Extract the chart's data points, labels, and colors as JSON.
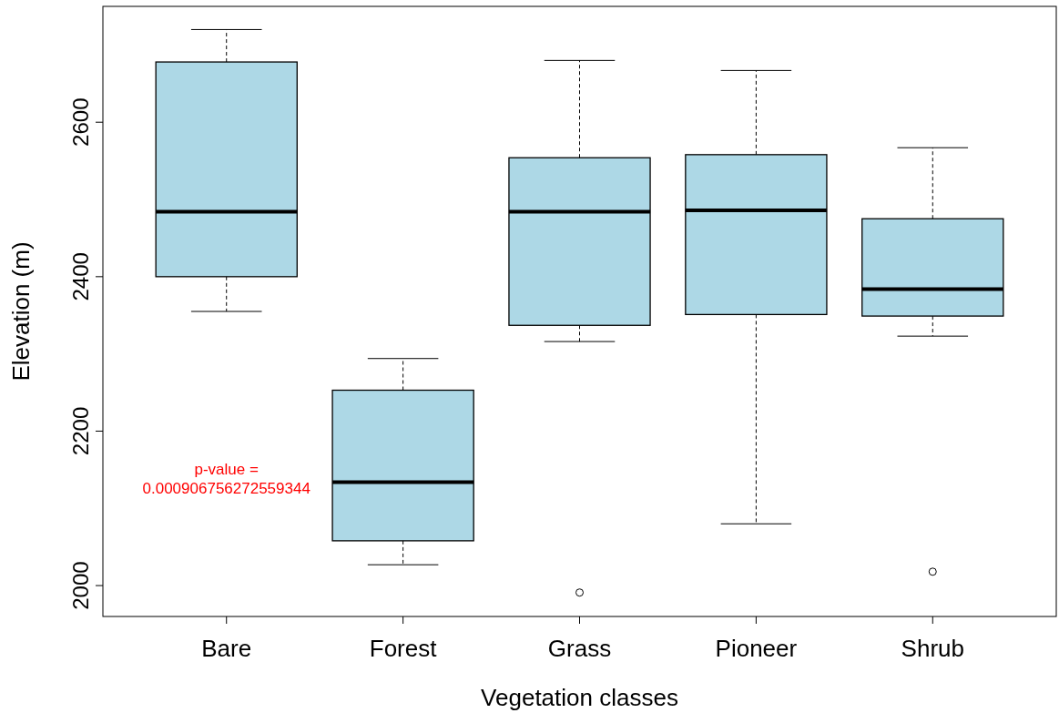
{
  "chart_data": {
    "type": "box",
    "xlabel": "Vegetation classes",
    "ylabel": "Elevation (m)",
    "categories": [
      "Bare",
      "Forest",
      "Grass",
      "Pioneer",
      "Shrub"
    ],
    "ylim": [
      1960,
      2750
    ],
    "yticks": [
      2000,
      2200,
      2400,
      2600
    ],
    "grid": false,
    "boxes": [
      {
        "low": 2355,
        "q1": 2400,
        "median": 2484,
        "q3": 2678,
        "high": 2720
      },
      {
        "low": 2027,
        "q1": 2058,
        "median": 2134,
        "q3": 2253,
        "high": 2294
      },
      {
        "low": 2316,
        "q1": 2337,
        "median": 2484,
        "q3": 2554,
        "high": 2680,
        "outliers": [
          1991
        ]
      },
      {
        "low": 2080,
        "q1": 2351,
        "median": 2486,
        "q3": 2558,
        "high": 2667
      },
      {
        "low": 2323,
        "q1": 2349,
        "median": 2384,
        "q3": 2475,
        "high": 2567,
        "outliers": [
          2018
        ]
      }
    ],
    "color": "#add8e6",
    "annotations": [
      "p-value = 0.000906756272559344"
    ]
  }
}
